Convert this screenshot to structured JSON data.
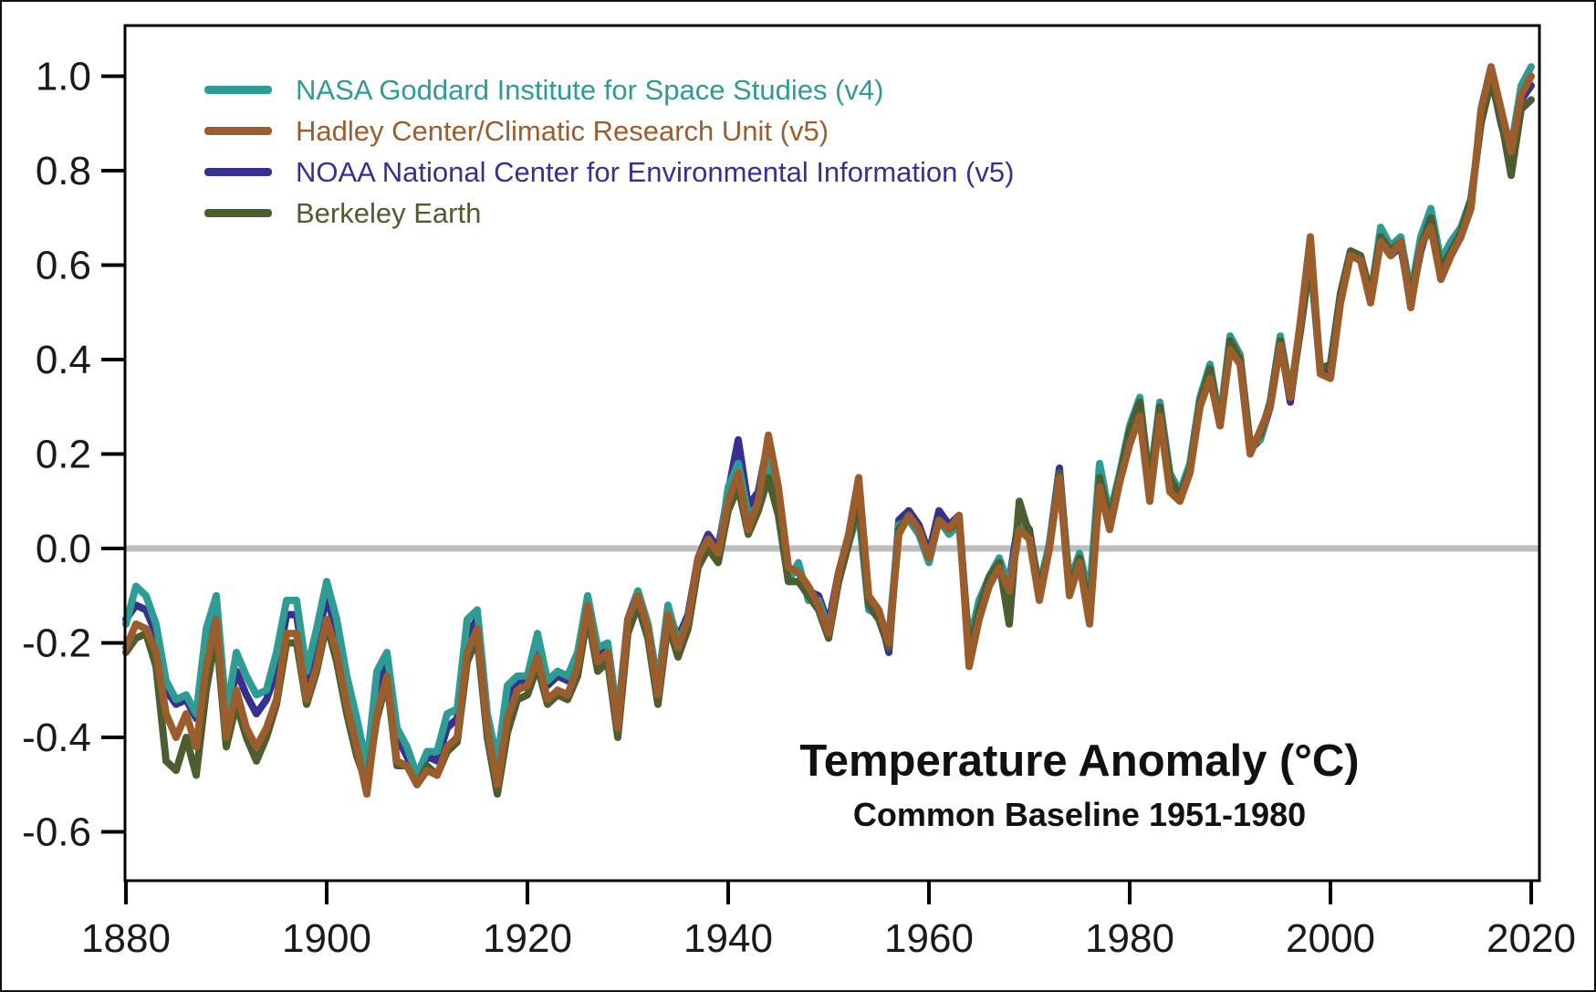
{
  "figure": {
    "title": "Temperature Anomaly (°C)",
    "subtitle": "Common Baseline 1951-1980"
  },
  "colors": {
    "background": "#FFFFFF",
    "frame": "#000000",
    "tick_label": "#1A1A1A",
    "zero_line": "#BEBEBE"
  },
  "chart_data": {
    "type": "line",
    "title": "Temperature Anomaly (°C)",
    "subtitle": "Common Baseline 1951-1980",
    "xlabel": "",
    "ylabel": "",
    "x_start": 1880,
    "x_step": 1,
    "xlim": [
      1879.9,
      2020.8
    ],
    "ylim": [
      -0.703,
      1.107
    ],
    "x_ticks": [
      1880,
      1900,
      1920,
      1940,
      1960,
      1980,
      2000,
      2020
    ],
    "x_tick_labels": [
      "1880",
      "1900",
      "1920",
      "1940",
      "1960",
      "1980",
      "2000",
      "2020"
    ],
    "y_ticks": [
      1.0,
      0.8,
      0.6,
      0.4,
      0.2,
      0.0,
      -0.2,
      -0.4,
      -0.6
    ],
    "y_tick_labels": [
      "1.0",
      "0.8",
      "0.6",
      "0.4",
      "0.2",
      "0.0",
      "-0.2",
      "-0.4",
      "-0.6"
    ],
    "zero_line": 0.0,
    "grid": false,
    "legend_position": "top-left",
    "draw_order": [
      2,
      0,
      3,
      1
    ],
    "series": [
      {
        "name": "NASA Goddard Institute for Space Studies (v4)",
        "color": "#2E9C94",
        "values": [
          -0.16,
          -0.08,
          -0.1,
          -0.16,
          -0.28,
          -0.32,
          -0.31,
          -0.35,
          -0.17,
          -0.1,
          -0.35,
          -0.22,
          -0.27,
          -0.31,
          -0.3,
          -0.22,
          -0.11,
          -0.11,
          -0.26,
          -0.17,
          -0.07,
          -0.15,
          -0.27,
          -0.36,
          -0.46,
          -0.26,
          -0.22,
          -0.38,
          -0.42,
          -0.48,
          -0.43,
          -0.43,
          -0.35,
          -0.34,
          -0.15,
          -0.13,
          -0.35,
          -0.45,
          -0.29,
          -0.27,
          -0.27,
          -0.18,
          -0.28,
          -0.26,
          -0.27,
          -0.22,
          -0.1,
          -0.21,
          -0.2,
          -0.36,
          -0.16,
          -0.09,
          -0.16,
          -0.29,
          -0.12,
          -0.2,
          -0.15,
          -0.03,
          0.0,
          -0.02,
          0.13,
          0.18,
          0.07,
          0.09,
          0.2,
          0.09,
          -0.07,
          -0.03,
          -0.11,
          -0.11,
          -0.17,
          -0.07,
          0.01,
          0.08,
          -0.13,
          -0.14,
          -0.19,
          0.05,
          0.06,
          0.03,
          -0.03,
          0.06,
          0.03,
          0.05,
          -0.2,
          -0.11,
          -0.06,
          -0.02,
          -0.08,
          0.05,
          0.03,
          -0.08,
          0.01,
          0.16,
          -0.07,
          -0.01,
          -0.1,
          0.18,
          0.07,
          0.16,
          0.26,
          0.32,
          0.14,
          0.31,
          0.16,
          0.12,
          0.18,
          0.32,
          0.39,
          0.27,
          0.45,
          0.41,
          0.22,
          0.23,
          0.31,
          0.45,
          0.33,
          0.46,
          0.61,
          0.38,
          0.39,
          0.54,
          0.63,
          0.62,
          0.53,
          0.68,
          0.64,
          0.66,
          0.54,
          0.66,
          0.72,
          0.61,
          0.65,
          0.68,
          0.74,
          0.9,
          1.01,
          0.92,
          0.85,
          0.98,
          1.02
        ]
      },
      {
        "name": "Hadley Center/Climatic Research Unit (v5)",
        "color": "#9B5D2B",
        "values": [
          -0.21,
          -0.16,
          -0.17,
          -0.22,
          -0.35,
          -0.4,
          -0.35,
          -0.42,
          -0.25,
          -0.15,
          -0.4,
          -0.3,
          -0.38,
          -0.42,
          -0.38,
          -0.32,
          -0.18,
          -0.18,
          -0.32,
          -0.25,
          -0.15,
          -0.22,
          -0.33,
          -0.42,
          -0.52,
          -0.35,
          -0.27,
          -0.45,
          -0.46,
          -0.5,
          -0.47,
          -0.48,
          -0.42,
          -0.4,
          -0.22,
          -0.17,
          -0.38,
          -0.5,
          -0.36,
          -0.3,
          -0.29,
          -0.23,
          -0.32,
          -0.3,
          -0.31,
          -0.25,
          -0.12,
          -0.24,
          -0.22,
          -0.38,
          -0.15,
          -0.1,
          -0.17,
          -0.31,
          -0.14,
          -0.21,
          -0.15,
          -0.02,
          0.02,
          -0.01,
          0.1,
          0.16,
          0.04,
          0.1,
          0.24,
          0.13,
          -0.04,
          -0.05,
          -0.08,
          -0.12,
          -0.18,
          -0.05,
          0.03,
          0.15,
          -0.1,
          -0.13,
          -0.2,
          0.03,
          0.07,
          0.04,
          -0.02,
          0.06,
          0.04,
          0.07,
          -0.25,
          -0.15,
          -0.08,
          -0.04,
          -0.09,
          0.04,
          0.02,
          -0.11,
          0.0,
          0.15,
          -0.1,
          -0.03,
          -0.16,
          0.13,
          0.04,
          0.14,
          0.22,
          0.28,
          0.1,
          0.28,
          0.12,
          0.1,
          0.16,
          0.3,
          0.36,
          0.26,
          0.42,
          0.39,
          0.2,
          0.25,
          0.3,
          0.43,
          0.32,
          0.48,
          0.66,
          0.37,
          0.36,
          0.52,
          0.62,
          0.61,
          0.52,
          0.65,
          0.62,
          0.65,
          0.51,
          0.64,
          0.68,
          0.57,
          0.62,
          0.66,
          0.72,
          0.93,
          1.02,
          0.93,
          0.84,
          0.96,
          1.0
        ]
      },
      {
        "name": "NOAA National Center for Environmental Information (v5)",
        "color": "#38308E",
        "values": [
          -0.15,
          -0.12,
          -0.13,
          -0.18,
          -0.3,
          -0.33,
          -0.32,
          -0.36,
          -0.2,
          -0.13,
          -0.36,
          -0.26,
          -0.31,
          -0.35,
          -0.32,
          -0.26,
          -0.14,
          -0.14,
          -0.28,
          -0.2,
          -0.1,
          -0.18,
          -0.29,
          -0.38,
          -0.47,
          -0.3,
          -0.24,
          -0.4,
          -0.44,
          -0.49,
          -0.44,
          -0.45,
          -0.38,
          -0.36,
          -0.18,
          -0.15,
          -0.36,
          -0.46,
          -0.32,
          -0.28,
          -0.28,
          -0.2,
          -0.29,
          -0.27,
          -0.28,
          -0.23,
          -0.11,
          -0.22,
          -0.21,
          -0.36,
          -0.15,
          -0.09,
          -0.16,
          -0.29,
          -0.13,
          -0.19,
          -0.14,
          -0.02,
          0.03,
          0.0,
          0.12,
          0.23,
          0.09,
          0.12,
          0.23,
          0.11,
          -0.05,
          -0.05,
          -0.09,
          -0.1,
          -0.16,
          -0.05,
          0.02,
          0.11,
          -0.11,
          -0.13,
          -0.22,
          0.06,
          0.08,
          0.05,
          -0.01,
          0.08,
          0.05,
          0.07,
          -0.22,
          -0.13,
          -0.06,
          -0.03,
          -0.07,
          0.07,
          0.04,
          -0.09,
          0.01,
          0.17,
          -0.08,
          -0.02,
          -0.13,
          0.16,
          0.06,
          0.15,
          0.24,
          0.3,
          0.12,
          0.29,
          0.14,
          0.11,
          0.17,
          0.31,
          0.37,
          0.26,
          0.43,
          0.4,
          0.21,
          0.23,
          0.3,
          0.44,
          0.31,
          0.47,
          0.62,
          0.37,
          0.38,
          0.53,
          0.62,
          0.61,
          0.53,
          0.65,
          0.62,
          0.64,
          0.52,
          0.63,
          0.7,
          0.57,
          0.62,
          0.66,
          0.73,
          0.91,
          1.0,
          0.9,
          0.82,
          0.95,
          0.98
        ]
      },
      {
        "name": "Berkeley Earth",
        "color": "#4C5E2F",
        "values": [
          -0.22,
          -0.19,
          -0.18,
          -0.25,
          -0.45,
          -0.47,
          -0.4,
          -0.48,
          -0.3,
          -0.18,
          -0.42,
          -0.33,
          -0.4,
          -0.45,
          -0.4,
          -0.33,
          -0.2,
          -0.2,
          -0.33,
          -0.26,
          -0.16,
          -0.24,
          -0.35,
          -0.44,
          -0.5,
          -0.36,
          -0.28,
          -0.46,
          -0.46,
          -0.5,
          -0.46,
          -0.48,
          -0.43,
          -0.41,
          -0.24,
          -0.19,
          -0.4,
          -0.52,
          -0.39,
          -0.32,
          -0.31,
          -0.25,
          -0.33,
          -0.31,
          -0.32,
          -0.27,
          -0.14,
          -0.26,
          -0.24,
          -0.4,
          -0.18,
          -0.12,
          -0.19,
          -0.33,
          -0.16,
          -0.23,
          -0.17,
          -0.04,
          0.0,
          -0.03,
          0.08,
          0.13,
          0.03,
          0.08,
          0.15,
          0.07,
          -0.07,
          -0.07,
          -0.1,
          -0.13,
          -0.19,
          -0.07,
          0.01,
          0.1,
          -0.12,
          -0.15,
          -0.21,
          0.04,
          0.07,
          0.04,
          -0.02,
          0.06,
          0.04,
          0.06,
          -0.22,
          -0.13,
          -0.06,
          -0.03,
          -0.16,
          0.1,
          0.03,
          -0.09,
          0.0,
          0.16,
          -0.09,
          -0.02,
          -0.14,
          0.15,
          0.06,
          0.15,
          0.25,
          0.31,
          0.13,
          0.3,
          0.15,
          0.11,
          0.17,
          0.31,
          0.38,
          0.26,
          0.44,
          0.4,
          0.22,
          0.24,
          0.31,
          0.44,
          0.32,
          0.46,
          0.62,
          0.38,
          0.39,
          0.54,
          0.63,
          0.62,
          0.54,
          0.66,
          0.63,
          0.65,
          0.53,
          0.64,
          0.7,
          0.59,
          0.63,
          0.67,
          0.74,
          0.9,
          0.99,
          0.91,
          0.79,
          0.93,
          0.95
        ]
      }
    ]
  }
}
